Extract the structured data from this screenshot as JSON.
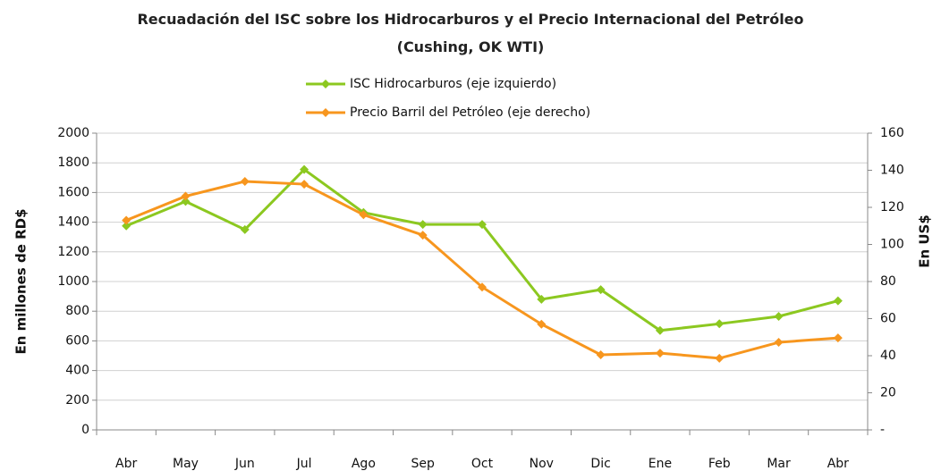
{
  "chart_data": {
    "type": "line",
    "title": "Recuadación del ISC sobre los Hidrocarburos y el Precio Internacional del Petróleo (Cushing, OK WTI)",
    "ylabel": "En millones de RD$",
    "y2label": "En US$",
    "categories": [
      "Abr",
      "May",
      "Jun",
      "Jul",
      "Ago",
      "Sep",
      "Oct",
      "Nov",
      "Dic",
      "Ene",
      "Feb",
      "Mar",
      "Abr"
    ],
    "series": [
      {
        "name": "ISC Hidrocarburos (eje izquierdo)",
        "color": "#8cc820",
        "axis": "y",
        "values": [
          1375,
          1540,
          1350,
          1755,
          1465,
          1385,
          1385,
          880,
          945,
          670,
          715,
          765,
          870
        ]
      },
      {
        "name": "Precio Barril del Petróleo (eje derecho)",
        "color": "#f7961e",
        "axis": "y2",
        "values": [
          113,
          126,
          134,
          132.5,
          116,
          105,
          77,
          57,
          40.5,
          41.4,
          38.6,
          47.2,
          49.6
        ]
      }
    ],
    "ylim": [
      0,
      2000
    ],
    "yticks": [
      0,
      200,
      400,
      600,
      800,
      1000,
      1200,
      1400,
      1600,
      1800,
      2000
    ],
    "y2lim": [
      0,
      160
    ],
    "y2ticks": [
      {
        "value": 0,
        "label": "-"
      },
      20,
      40,
      60,
      80,
      100,
      120,
      140,
      160
    ],
    "grid": true,
    "legend": "top"
  }
}
